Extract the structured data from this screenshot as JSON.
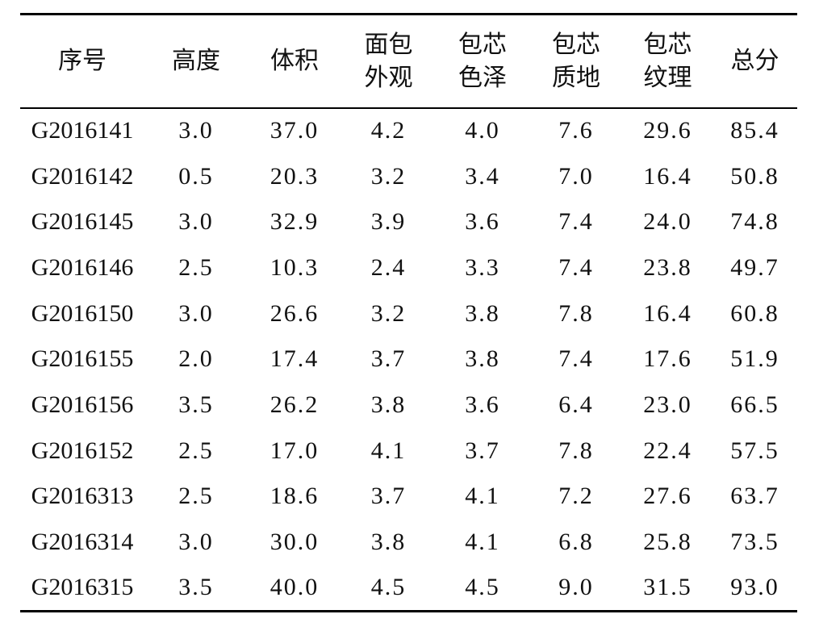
{
  "table": {
    "header": [
      [
        "序号"
      ],
      [
        "高度"
      ],
      [
        "体积"
      ],
      [
        "面包",
        "外观"
      ],
      [
        "包芯",
        "色泽"
      ],
      [
        "包芯",
        "质地"
      ],
      [
        "包芯",
        "纹理"
      ],
      [
        "总分"
      ]
    ],
    "rows": [
      [
        "G2016141",
        "3.0",
        "37.0",
        "4.2",
        "4.0",
        "7.6",
        "29.6",
        "85.4"
      ],
      [
        "G2016142",
        "0.5",
        "20.3",
        "3.2",
        "3.4",
        "7.0",
        "16.4",
        "50.8"
      ],
      [
        "G2016145",
        "3.0",
        "32.9",
        "3.9",
        "3.6",
        "7.4",
        "24.0",
        "74.8"
      ],
      [
        "G2016146",
        "2.5",
        "10.3",
        "2.4",
        "3.3",
        "7.4",
        "23.8",
        "49.7"
      ],
      [
        "G2016150",
        "3.0",
        "26.6",
        "3.2",
        "3.8",
        "7.8",
        "16.4",
        "60.8"
      ],
      [
        "G2016155",
        "2.0",
        "17.4",
        "3.7",
        "3.8",
        "7.4",
        "17.6",
        "51.9"
      ],
      [
        "G2016156",
        "3.5",
        "26.2",
        "3.8",
        "3.6",
        "6.4",
        "23.0",
        "66.5"
      ],
      [
        "G2016152",
        "2.5",
        "17.0",
        "4.1",
        "3.7",
        "7.8",
        "22.4",
        "57.5"
      ],
      [
        "G2016313",
        "2.5",
        "18.6",
        "3.7",
        "4.1",
        "7.2",
        "27.6",
        "63.7"
      ],
      [
        "G2016314",
        "3.0",
        "30.0",
        "3.8",
        "4.1",
        "6.8",
        "25.8",
        "73.5"
      ],
      [
        "G2016315",
        "3.5",
        "40.0",
        "4.5",
        "4.5",
        "9.0",
        "31.5",
        "93.0"
      ]
    ]
  }
}
